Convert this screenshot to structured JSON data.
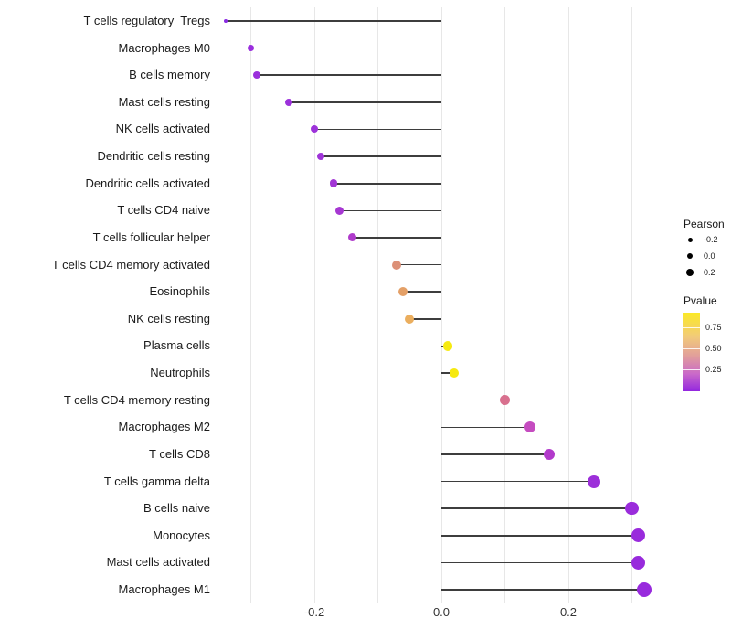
{
  "chart_data": {
    "type": "lollipop",
    "orientation": "horizontal",
    "title": "",
    "xlabel": "",
    "ylabel": "",
    "categories": [
      "T cells regulatory  Tregs",
      "Macrophages M0",
      "B cells memory",
      "Mast cells resting",
      "NK cells activated",
      "Dendritic cells resting",
      "Dendritic cells activated",
      "T cells CD4 naive",
      "T cells follicular helper",
      "T cells CD4 memory activated",
      "Eosinophils",
      "NK cells resting",
      "Plasma cells",
      "Neutrophils",
      "T cells CD4 memory resting",
      "Macrophages M2",
      "T cells CD8",
      "T cells gamma delta",
      "B cells naive",
      "Monocytes",
      "Mast cells activated",
      "Macrophages M1"
    ],
    "values": [
      -0.34,
      -0.3,
      -0.29,
      -0.24,
      -0.2,
      -0.19,
      -0.17,
      -0.16,
      -0.14,
      -0.07,
      -0.06,
      -0.05,
      0.01,
      0.02,
      0.1,
      0.14,
      0.17,
      0.24,
      0.3,
      0.31,
      0.31,
      0.32
    ],
    "dot_colors": [
      "#8A2BE2",
      "#9A2EDE",
      "#9B30DC",
      "#9C31DB",
      "#9D33DA",
      "#9F34D8",
      "#A236D5",
      "#A637D2",
      "#AF3BCB",
      "#DC9077",
      "#E4A067",
      "#EBAE5E",
      "#F6EA10",
      "#F6E90F",
      "#D8708E",
      "#C54CC0",
      "#B23ACB",
      "#9C2FD9",
      "#9A2CDB",
      "#992BDC",
      "#982ADC",
      "#982ADD"
    ],
    "dot_sizes": [
      4,
      7,
      8,
      8,
      8,
      8.5,
      8.5,
      9,
      9,
      10,
      10,
      10,
      10.5,
      10.5,
      11,
      12,
      12.5,
      14,
      14.5,
      15,
      15.5,
      16
    ],
    "x_axis": {
      "tick_labels": [
        "-0.2",
        "0.0",
        "0.2"
      ],
      "tick_values": [
        -0.2,
        0.0,
        0.2
      ],
      "gridline_values": [
        -0.3,
        -0.2,
        -0.1,
        0.0,
        0.1,
        0.2,
        0.3
      ],
      "range": [
        -0.36,
        0.365
      ],
      "grid": "on"
    },
    "legend_size": {
      "title": "Pearson",
      "entries": [
        {
          "label": "-0.2",
          "diameter": 5
        },
        {
          "label": "0.0",
          "diameter": 6.5
        },
        {
          "label": "0.2",
          "diameter": 8
        }
      ],
      "position": "right"
    },
    "legend_color": {
      "title": "Pvalue",
      "tick_labels": [
        "0.75",
        "0.50",
        "0.25"
      ],
      "gradient_top_color": "#FBE926",
      "gradient_bottom_color": "#9327DF",
      "position": "right"
    }
  }
}
